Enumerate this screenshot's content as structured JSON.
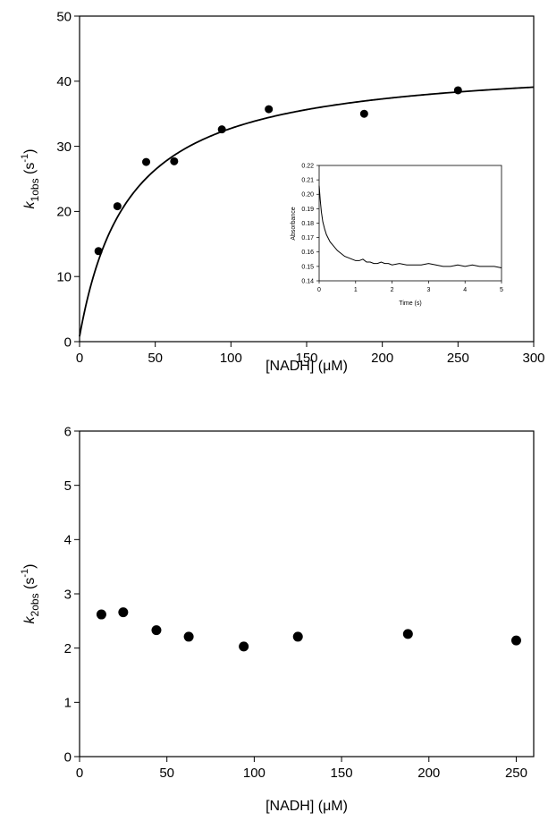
{
  "chart_data": [
    {
      "type": "scatter",
      "xlabel": "[NADH] (μM)",
      "ylabel": {
        "italic": "k",
        "sub": "1obs",
        "base": " (s",
        "sup": "-1",
        "close": ")"
      },
      "xlim": [
        0,
        300
      ],
      "ylim": [
        0,
        50
      ],
      "xticks": [
        0,
        50,
        100,
        150,
        200,
        250,
        300
      ],
      "yticks": [
        0,
        10,
        20,
        30,
        40,
        50
      ],
      "grid": false,
      "series": [
        {
          "type": "scatter",
          "x": [
            12.5,
            25,
            44,
            62.5,
            94,
            125,
            188,
            250
          ],
          "y": [
            13.9,
            20.8,
            27.6,
            27.7,
            32.6,
            35.7,
            35.0,
            38.6
          ]
        },
        {
          "type": "line",
          "fit": "hyperbolic",
          "vmax": 42.5,
          "km": 33,
          "x_range": [
            0,
            300
          ]
        }
      ],
      "inset": {
        "type": "line",
        "xlabel": "Time (s)",
        "ylabel": "Absorbance",
        "xlim": [
          0,
          5
        ],
        "ylim": [
          0.14,
          0.22
        ],
        "xticks": [
          0,
          1,
          2,
          3,
          4,
          5
        ],
        "yticks": [
          0.14,
          0.15,
          0.16,
          0.17,
          0.18,
          0.19,
          0.2,
          0.21,
          0.22
        ],
        "ytick_labels": [
          "0.14",
          "0.15",
          "0.16",
          "0.17",
          "0.18",
          "0.19",
          "0.20",
          "0.21",
          "0.22"
        ],
        "trace": {
          "x": [
            0,
            0.03,
            0.06,
            0.1,
            0.15,
            0.2,
            0.3,
            0.4,
            0.5,
            0.6,
            0.7,
            0.8,
            0.9,
            1.0,
            1.1,
            1.2,
            1.3,
            1.4,
            1.5,
            1.6,
            1.7,
            1.8,
            1.9,
            2.0,
            2.2,
            2.4,
            2.6,
            2.8,
            3.0,
            3.2,
            3.4,
            3.6,
            3.8,
            4.0,
            4.2,
            4.4,
            4.6,
            4.8,
            5.0
          ],
          "y": [
            0.206,
            0.196,
            0.188,
            0.181,
            0.176,
            0.172,
            0.167,
            0.164,
            0.161,
            0.159,
            0.157,
            0.156,
            0.155,
            0.154,
            0.154,
            0.155,
            0.153,
            0.153,
            0.152,
            0.152,
            0.153,
            0.152,
            0.152,
            0.151,
            0.152,
            0.151,
            0.151,
            0.151,
            0.152,
            0.151,
            0.15,
            0.15,
            0.151,
            0.15,
            0.151,
            0.15,
            0.15,
            0.15,
            0.149
          ]
        }
      }
    },
    {
      "type": "scatter",
      "xlabel": "[NADH] (μM)",
      "ylabel": {
        "italic": "k",
        "sub": "2obs",
        "base": " (s",
        "sup": "-1",
        "close": ")"
      },
      "xlim": [
        0,
        260
      ],
      "ylim": [
        0,
        6
      ],
      "xticks": [
        0,
        50,
        100,
        150,
        200,
        250
      ],
      "yticks": [
        0,
        1,
        2,
        3,
        4,
        5,
        6
      ],
      "grid": false,
      "series": [
        {
          "type": "scatter",
          "x": [
            12.5,
            25,
            44,
            62.5,
            94,
            125,
            188,
            250
          ],
          "y": [
            2.62,
            2.66,
            2.33,
            2.21,
            2.03,
            2.21,
            2.26,
            2.14
          ]
        }
      ]
    }
  ]
}
